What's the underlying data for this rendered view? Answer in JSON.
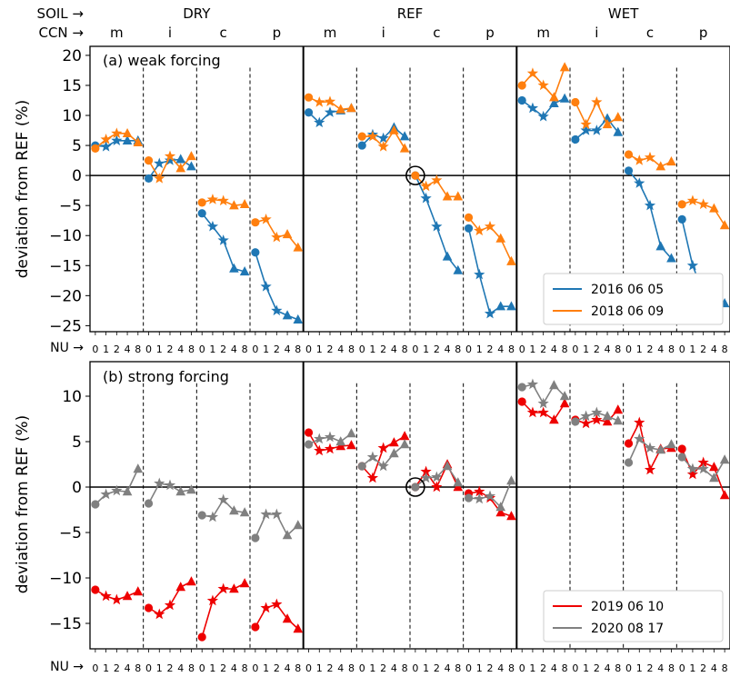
{
  "figure": {
    "soil_header": "SOIL →",
    "ccn_header": "CCN →",
    "nu_header": "NU →",
    "soil_groups": [
      "DRY",
      "REF",
      "WET"
    ],
    "ccn_groups": [
      "m",
      "i",
      "c",
      "p"
    ],
    "nu_ticks": [
      "0",
      "1",
      "2",
      "4",
      "8"
    ],
    "ylabel": "deviation from REF (%)"
  },
  "chart_data": [
    {
      "type": "line",
      "title": "(a) weak forcing",
      "ylabel": "deviation from REF (%)",
      "ylim": [
        -26,
        21.5
      ],
      "yticks": [
        -25,
        -20,
        -15,
        -10,
        -5,
        0,
        5,
        10,
        15,
        20
      ],
      "legend_position": "lower-right",
      "x_description": "60 positions: SOIL group × CCN group × NU value",
      "series": [
        {
          "name": "2016 06 05",
          "color": "#1f77b4",
          "values": [
            [
              5.0,
              4.8,
              5.8,
              5.8,
              5.8
            ],
            [
              -0.5,
              2.0,
              2.5,
              2.7,
              1.5
            ],
            [
              -6.3,
              -8.5,
              -10.8,
              -15.5,
              -16.0
            ],
            [
              -12.8,
              -18.5,
              -22.5,
              -23.3,
              -24.0
            ],
            [
              10.5,
              8.8,
              10.5,
              10.8,
              11.2
            ],
            [
              5.0,
              6.8,
              6.2,
              8.0,
              6.5
            ],
            [
              0.0,
              -3.8,
              -8.5,
              -13.5,
              -15.8
            ],
            [
              -8.8,
              -16.5,
              -23.0,
              -21.8,
              -21.8
            ],
            [
              12.5,
              11.2,
              9.8,
              12.0,
              12.8
            ],
            [
              6.0,
              7.5,
              7.5,
              9.5,
              7.2
            ],
            [
              0.8,
              -1.3,
              -5.0,
              -11.8,
              -13.8
            ],
            [
              -7.3,
              -15.0,
              -19.5,
              -22.0,
              -21.3
            ]
          ]
        },
        {
          "name": "2018 06 09",
          "color": "#ff7f0e",
          "values": [
            [
              4.5,
              6.0,
              7.0,
              7.0,
              5.5
            ],
            [
              2.5,
              -0.5,
              3.2,
              1.2,
              3.2
            ],
            [
              -4.5,
              -4.0,
              -4.2,
              -5.0,
              -4.8
            ],
            [
              -7.8,
              -7.3,
              -10.3,
              -9.8,
              -12.0
            ],
            [
              13.0,
              12.2,
              12.3,
              11.0,
              11.2
            ],
            [
              6.5,
              6.5,
              4.8,
              7.5,
              4.5
            ],
            [
              0.0,
              -1.8,
              -0.8,
              -3.5,
              -3.5
            ],
            [
              -7.0,
              -9.2,
              -8.5,
              -10.5,
              -14.3
            ],
            [
              15.0,
              17.0,
              15.0,
              13.0,
              18.0
            ],
            [
              12.2,
              8.5,
              12.2,
              8.5,
              9.7
            ],
            [
              3.5,
              2.5,
              3.0,
              1.5,
              2.3
            ],
            [
              -4.8,
              -4.2,
              -4.8,
              -5.5,
              -8.3
            ]
          ]
        }
      ]
    },
    {
      "type": "line",
      "title": "(b) strong forcing",
      "ylabel": "deviation from REF (%)",
      "ylim": [
        -17.8,
        13.8
      ],
      "yticks": [
        -15,
        -10,
        -5,
        0,
        5,
        10
      ],
      "legend_position": "lower-right",
      "x_description": "60 positions: SOIL group × CCN group × NU value",
      "series": [
        {
          "name": "2019 06 10",
          "color": "#ee0000",
          "values": [
            [
              -11.3,
              -12.0,
              -12.4,
              -12.0,
              -11.5
            ],
            [
              -13.3,
              -14.0,
              -13.0,
              -11.0,
              -10.4
            ],
            [
              -16.5,
              -12.5,
              -11.2,
              -11.2,
              -10.6
            ],
            [
              -15.4,
              -13.3,
              -12.9,
              -14.5,
              -15.6
            ],
            [
              6.0,
              4.0,
              4.2,
              4.5,
              4.6
            ],
            [
              2.3,
              1.0,
              4.3,
              4.9,
              5.6
            ],
            [
              0.0,
              1.7,
              0.0,
              2.5,
              0.0
            ],
            [
              -0.7,
              -0.5,
              -1.2,
              -2.8,
              -3.2
            ],
            [
              9.4,
              8.2,
              8.2,
              7.4,
              9.2
            ],
            [
              7.4,
              7.0,
              7.4,
              7.2,
              8.5
            ],
            [
              4.8,
              7.1,
              1.9,
              4.2,
              4.3
            ],
            [
              4.2,
              1.4,
              2.7,
              2.2,
              -0.9
            ]
          ]
        },
        {
          "name": "2020 08 17",
          "color": "#808080",
          "values": [
            [
              -1.9,
              -0.8,
              -0.4,
              -0.5,
              2.0
            ],
            [
              -1.8,
              0.4,
              0.2,
              -0.5,
              -0.3
            ],
            [
              -3.1,
              -3.3,
              -1.4,
              -2.6,
              -2.8
            ],
            [
              -5.6,
              -3.0,
              -3.0,
              -5.3,
              -4.2
            ],
            [
              4.7,
              5.3,
              5.5,
              5.0,
              5.9
            ],
            [
              2.3,
              3.3,
              2.3,
              3.7,
              4.7
            ],
            [
              0.0,
              1.0,
              1.1,
              2.3,
              0.5
            ],
            [
              -1.2,
              -1.3,
              -1.0,
              -2.2,
              0.7
            ],
            [
              11.0,
              11.3,
              9.2,
              11.2,
              10.0
            ],
            [
              7.2,
              7.8,
              8.2,
              7.8,
              7.3
            ],
            [
              2.7,
              5.3,
              4.3,
              4.1,
              4.7
            ],
            [
              3.3,
              2.0,
              2.0,
              1.0,
              3.0
            ]
          ]
        }
      ]
    }
  ]
}
